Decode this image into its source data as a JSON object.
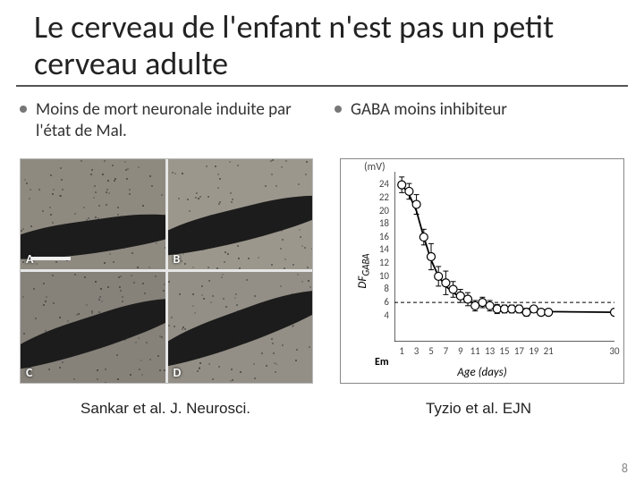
{
  "title": "Le cerveau de l'enfant n'est pas un petit cerveau adulte",
  "left": {
    "bullet": "Moins de mort neuronale induite par l'état de Mal.",
    "panel_labels": [
      "A",
      "B",
      "C",
      "D"
    ],
    "caption": "Sankar et al. J. Neurosci."
  },
  "right": {
    "bullet": "GABA moins inhibiteur",
    "caption": "Tyzio et al. EJN"
  },
  "chart": {
    "type": "scatter-line",
    "x_label": "Age (days)",
    "y_label": "DF_GABA",
    "y_unit": "(mV)",
    "xlim": [
      0,
      30
    ],
    "ylim": [
      0,
      26
    ],
    "xticks": [
      1,
      3,
      5,
      7,
      9,
      11,
      13,
      15,
      17,
      19,
      21,
      30
    ],
    "yticks": [
      4,
      6,
      8,
      10,
      12,
      14,
      16,
      18,
      20,
      22,
      24
    ],
    "dashed_y": 6,
    "em_label": "Em",
    "axis_color": "#000000",
    "line_color": "#000000",
    "marker_fill": "#ffffff",
    "marker_stroke": "#000000",
    "marker_size": 4.5,
    "marker_shape": "circle",
    "line_width": 1.8,
    "points": [
      {
        "x": 1,
        "y": 24,
        "err": 1.2
      },
      {
        "x": 2,
        "y": 23,
        "err": 1.2
      },
      {
        "x": 3,
        "y": 21,
        "err": 1.5
      },
      {
        "x": 4,
        "y": 16,
        "err": 1.2
      },
      {
        "x": 5,
        "y": 13,
        "err": 2.0
      },
      {
        "x": 6,
        "y": 10,
        "err": 1.5
      },
      {
        "x": 7,
        "y": 9,
        "err": 1.8
      },
      {
        "x": 8,
        "y": 8,
        "err": 1.2
      },
      {
        "x": 9,
        "y": 7,
        "err": 1.0
      },
      {
        "x": 10,
        "y": 6.5,
        "err": 1.0
      },
      {
        "x": 11,
        "y": 5.5,
        "err": 0.8
      },
      {
        "x": 12,
        "y": 6,
        "err": 0.8
      },
      {
        "x": 13,
        "y": 5.5,
        "err": 0.8
      },
      {
        "x": 14,
        "y": 5,
        "err": 0.7
      },
      {
        "x": 15,
        "y": 5,
        "err": 0.6
      },
      {
        "x": 16,
        "y": 5,
        "err": 0.6
      },
      {
        "x": 17,
        "y": 5,
        "err": 0.6
      },
      {
        "x": 18,
        "y": 4.5,
        "err": 0.6
      },
      {
        "x": 19,
        "y": 5,
        "err": 0.5
      },
      {
        "x": 20,
        "y": 4.5,
        "err": 0.5
      },
      {
        "x": 21,
        "y": 4.5,
        "err": 0.5
      },
      {
        "x": 30,
        "y": 4.5,
        "err": 0.5
      }
    ],
    "curve": [
      {
        "x": 1,
        "y": 24
      },
      {
        "x": 2,
        "y": 22.5
      },
      {
        "x": 3,
        "y": 20
      },
      {
        "x": 4,
        "y": 16
      },
      {
        "x": 5,
        "y": 12.5
      },
      {
        "x": 6,
        "y": 10
      },
      {
        "x": 7,
        "y": 8.5
      },
      {
        "x": 8,
        "y": 7.5
      },
      {
        "x": 9,
        "y": 6.8
      },
      {
        "x": 10,
        "y": 6.2
      },
      {
        "x": 12,
        "y": 5.6
      },
      {
        "x": 14,
        "y": 5.2
      },
      {
        "x": 17,
        "y": 4.9
      },
      {
        "x": 21,
        "y": 4.6
      },
      {
        "x": 30,
        "y": 4.5
      }
    ]
  },
  "micro": {
    "bg_colors": [
      "#8e8a80",
      "#9b978c",
      "#86827a",
      "#938f86"
    ],
    "band_color": "#1c1c1c",
    "speck_count": 90
  },
  "page_number": "8"
}
